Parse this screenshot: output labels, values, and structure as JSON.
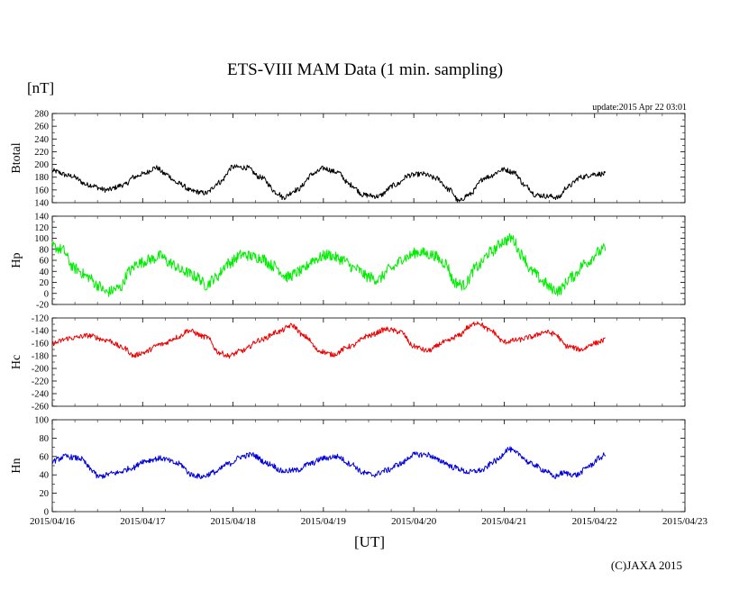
{
  "title": "ETS-VIII MAM Data (1 min. sampling)",
  "unit_label": "[nT]",
  "update_label": "update:2015 Apr 22 03:01",
  "xlabel": "[UT]",
  "credit": "(C)JAXA 2015",
  "chart_data": {
    "type": "line",
    "x_axis": {
      "unit": "day since 2015/04/16 00:00 UT",
      "range": [
        0,
        7
      ],
      "ticks": [
        0,
        1,
        2,
        3,
        4,
        5,
        6,
        7
      ],
      "tick_labels": [
        "2015/04/16",
        "2015/04/17",
        "2015/04/18",
        "2015/04/19",
        "2015/04/20",
        "2015/04/21",
        "2015/04/22",
        "2015/04/23"
      ]
    },
    "panels": [
      {
        "name": "Btotal",
        "ylabel": "Btotal",
        "color": "#000000",
        "ylim": [
          140,
          280
        ],
        "yticks": [
          140,
          160,
          180,
          200,
          220,
          240,
          260,
          280
        ],
        "noise": 4,
        "points": [
          [
            0,
            190
          ],
          [
            0.2,
            182
          ],
          [
            0.4,
            168
          ],
          [
            0.6,
            160
          ],
          [
            0.8,
            168
          ],
          [
            0.9,
            180
          ],
          [
            1.0,
            185
          ],
          [
            1.15,
            195
          ],
          [
            1.25,
            185
          ],
          [
            1.4,
            170
          ],
          [
            1.55,
            158
          ],
          [
            1.7,
            155
          ],
          [
            1.85,
            172
          ],
          [
            2.0,
            196
          ],
          [
            2.15,
            195
          ],
          [
            2.3,
            180
          ],
          [
            2.5,
            155
          ],
          [
            2.55,
            148
          ],
          [
            2.7,
            160
          ],
          [
            2.9,
            186
          ],
          [
            3.0,
            194
          ],
          [
            3.15,
            188
          ],
          [
            3.3,
            168
          ],
          [
            3.45,
            152
          ],
          [
            3.6,
            150
          ],
          [
            3.8,
            168
          ],
          [
            3.95,
            183
          ],
          [
            4.1,
            185
          ],
          [
            4.25,
            178
          ],
          [
            4.4,
            160
          ],
          [
            4.5,
            142
          ],
          [
            4.6,
            152
          ],
          [
            4.8,
            180
          ],
          [
            5.0,
            192
          ],
          [
            5.1,
            188
          ],
          [
            5.25,
            165
          ],
          [
            5.35,
            152
          ],
          [
            5.5,
            150
          ],
          [
            5.6,
            148
          ],
          [
            5.7,
            165
          ],
          [
            5.85,
            180
          ],
          [
            6.0,
            185
          ],
          [
            6.12,
            185
          ]
        ]
      },
      {
        "name": "Hp",
        "ylabel": "Hp",
        "color": "#00ee00",
        "ylim": [
          -20,
          140
        ],
        "yticks": [
          -20,
          0,
          20,
          40,
          60,
          80,
          100,
          120,
          140
        ],
        "noise": 10,
        "points": [
          [
            0,
            85
          ],
          [
            0.1,
            80
          ],
          [
            0.25,
            45
          ],
          [
            0.4,
            30
          ],
          [
            0.5,
            15
          ],
          [
            0.6,
            2
          ],
          [
            0.75,
            10
          ],
          [
            0.85,
            40
          ],
          [
            0.95,
            55
          ],
          [
            1.1,
            62
          ],
          [
            1.2,
            68
          ],
          [
            1.3,
            55
          ],
          [
            1.45,
            40
          ],
          [
            1.6,
            30
          ],
          [
            1.7,
            15
          ],
          [
            1.8,
            28
          ],
          [
            1.95,
            55
          ],
          [
            2.1,
            70
          ],
          [
            2.3,
            65
          ],
          [
            2.45,
            50
          ],
          [
            2.6,
            30
          ],
          [
            2.75,
            40
          ],
          [
            2.9,
            62
          ],
          [
            3.05,
            70
          ],
          [
            3.2,
            62
          ],
          [
            3.35,
            45
          ],
          [
            3.5,
            30
          ],
          [
            3.6,
            25
          ],
          [
            3.75,
            45
          ],
          [
            3.9,
            65
          ],
          [
            4.05,
            75
          ],
          [
            4.2,
            70
          ],
          [
            4.35,
            55
          ],
          [
            4.45,
            20
          ],
          [
            4.55,
            15
          ],
          [
            4.7,
            48
          ],
          [
            4.85,
            75
          ],
          [
            5.0,
            95
          ],
          [
            5.08,
            100
          ],
          [
            5.2,
            70
          ],
          [
            5.3,
            40
          ],
          [
            5.45,
            20
          ],
          [
            5.5,
            10
          ],
          [
            5.6,
            5
          ],
          [
            5.75,
            30
          ],
          [
            5.9,
            55
          ],
          [
            6.05,
            75
          ],
          [
            6.12,
            82
          ]
        ]
      },
      {
        "name": "Hc",
        "ylabel": "Hc",
        "color": "#ee0000",
        "ylim": [
          -260,
          -120
        ],
        "yticks": [
          -260,
          -240,
          -220,
          -200,
          -180,
          -160,
          -140,
          -120
        ],
        "noise": 4,
        "points": [
          [
            0,
            -160
          ],
          [
            0.2,
            -152
          ],
          [
            0.4,
            -148
          ],
          [
            0.6,
            -155
          ],
          [
            0.8,
            -168
          ],
          [
            0.9,
            -180
          ],
          [
            1.0,
            -175
          ],
          [
            1.2,
            -162
          ],
          [
            1.4,
            -150
          ],
          [
            1.5,
            -140
          ],
          [
            1.7,
            -150
          ],
          [
            1.85,
            -175
          ],
          [
            1.95,
            -180
          ],
          [
            2.1,
            -172
          ],
          [
            2.3,
            -155
          ],
          [
            2.5,
            -142
          ],
          [
            2.65,
            -132
          ],
          [
            2.8,
            -150
          ],
          [
            2.95,
            -172
          ],
          [
            3.1,
            -178
          ],
          [
            3.3,
            -165
          ],
          [
            3.5,
            -148
          ],
          [
            3.7,
            -138
          ],
          [
            3.85,
            -142
          ],
          [
            4.0,
            -165
          ],
          [
            4.15,
            -172
          ],
          [
            4.35,
            -158
          ],
          [
            4.5,
            -148
          ],
          [
            4.6,
            -135
          ],
          [
            4.7,
            -127
          ],
          [
            4.85,
            -140
          ],
          [
            5.0,
            -158
          ],
          [
            5.15,
            -155
          ],
          [
            5.3,
            -150
          ],
          [
            5.45,
            -142
          ],
          [
            5.55,
            -145
          ],
          [
            5.7,
            -165
          ],
          [
            5.85,
            -170
          ],
          [
            6.0,
            -160
          ],
          [
            6.12,
            -155
          ]
        ]
      },
      {
        "name": "Hn",
        "ylabel": "Hn",
        "color": "#0000dd",
        "ylim": [
          0,
          100
        ],
        "yticks": [
          0,
          20,
          40,
          60,
          80,
          100
        ],
        "noise": 3,
        "points": [
          [
            0,
            55
          ],
          [
            0.15,
            60
          ],
          [
            0.3,
            58
          ],
          [
            0.45,
            45
          ],
          [
            0.5,
            38
          ],
          [
            0.7,
            42
          ],
          [
            0.9,
            48
          ],
          [
            1.0,
            55
          ],
          [
            1.2,
            58
          ],
          [
            1.4,
            52
          ],
          [
            1.55,
            40
          ],
          [
            1.65,
            38
          ],
          [
            1.8,
            43
          ],
          [
            1.95,
            52
          ],
          [
            2.1,
            60
          ],
          [
            2.2,
            62
          ],
          [
            2.4,
            52
          ],
          [
            2.55,
            44
          ],
          [
            2.7,
            45
          ],
          [
            2.85,
            52
          ],
          [
            3.0,
            58
          ],
          [
            3.15,
            60
          ],
          [
            3.3,
            52
          ],
          [
            3.45,
            42
          ],
          [
            3.55,
            40
          ],
          [
            3.7,
            45
          ],
          [
            3.85,
            52
          ],
          [
            4.0,
            62
          ],
          [
            4.15,
            62
          ],
          [
            4.3,
            55
          ],
          [
            4.45,
            48
          ],
          [
            4.6,
            43
          ],
          [
            4.75,
            45
          ],
          [
            4.9,
            55
          ],
          [
            5.05,
            68
          ],
          [
            5.15,
            63
          ],
          [
            5.3,
            52
          ],
          [
            5.45,
            45
          ],
          [
            5.55,
            38
          ],
          [
            5.65,
            42
          ],
          [
            5.8,
            40
          ],
          [
            5.95,
            50
          ],
          [
            6.05,
            58
          ],
          [
            6.12,
            62
          ]
        ]
      }
    ]
  }
}
